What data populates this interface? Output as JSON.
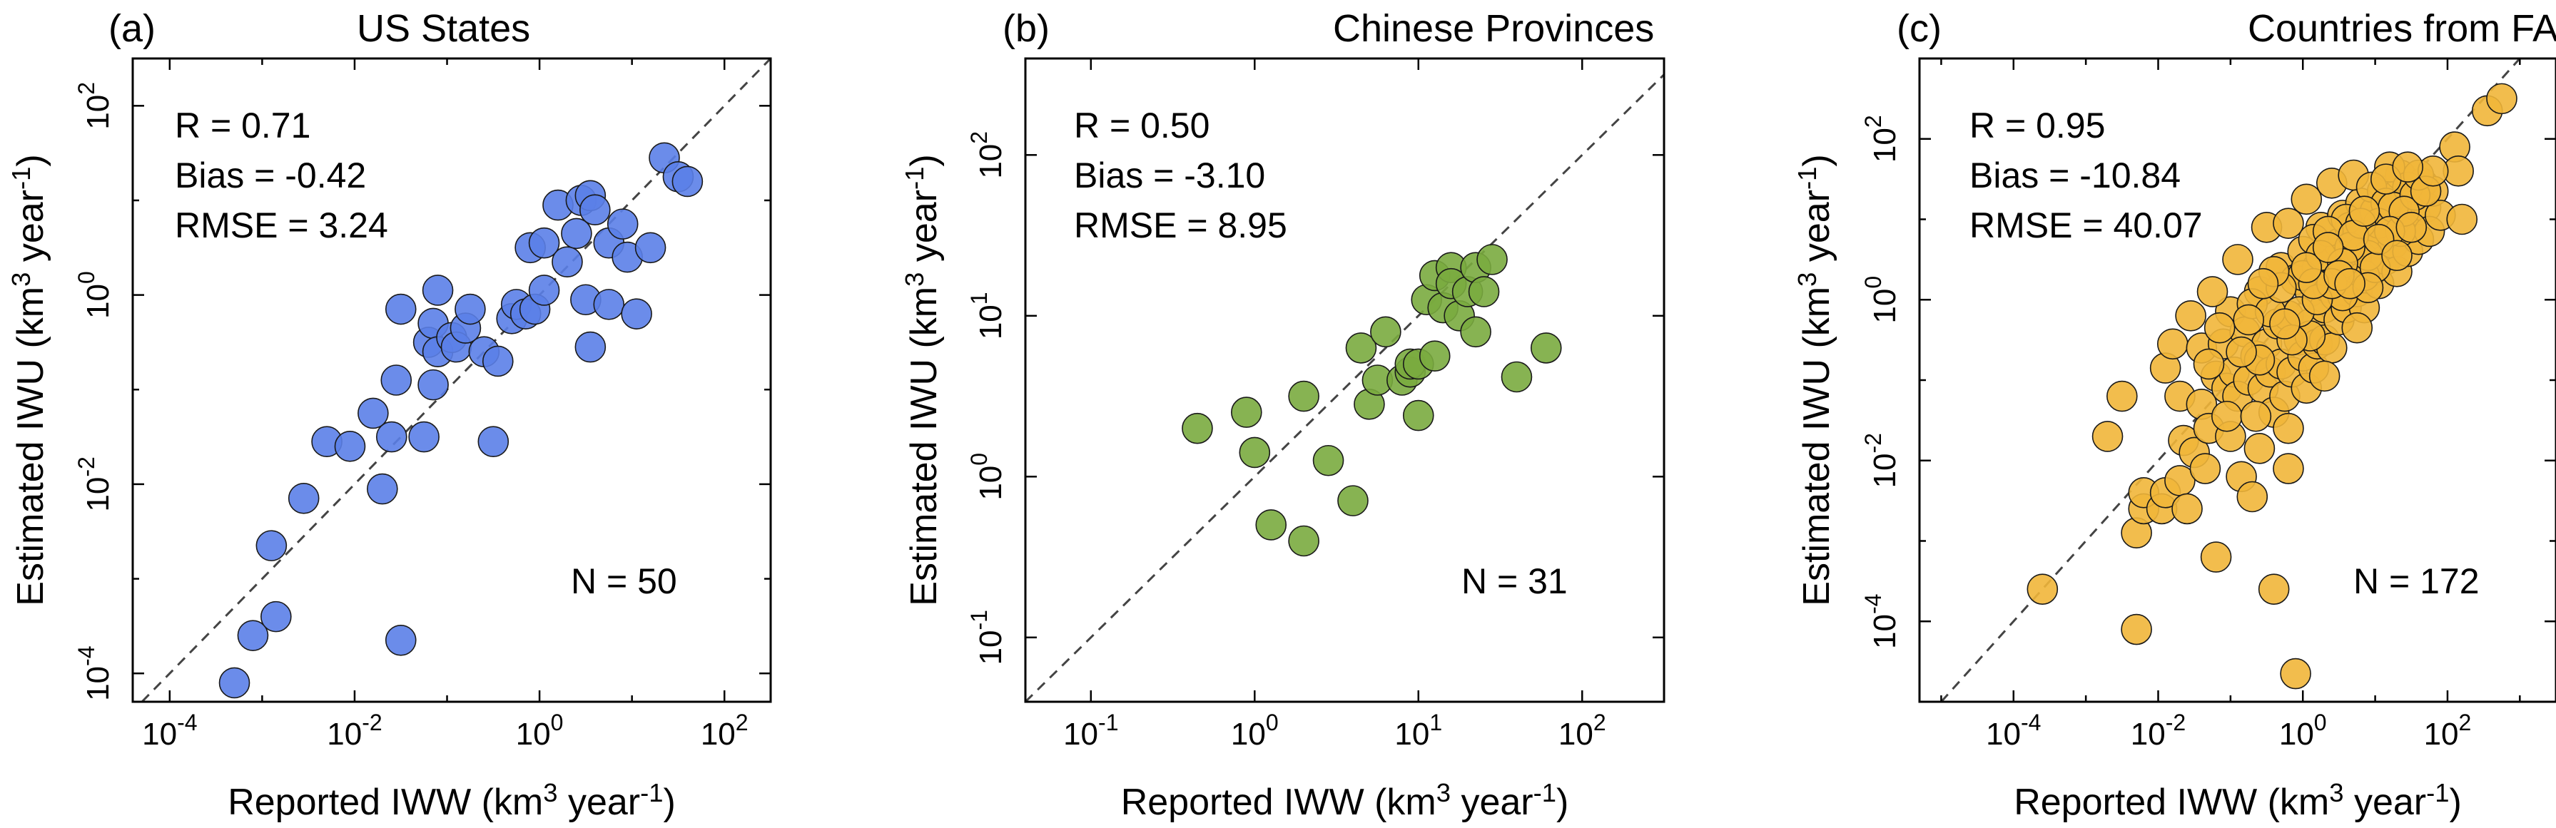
{
  "chart_data": [
    {
      "type": "scatter",
      "panel_label": "(a)",
      "title": "US States",
      "xlabel": "Reported IWW (km",
      "ylabel": "Estimated IWU (km",
      "unit_sup": "3",
      "unit_tail": " year",
      "unit_tail_sup": "-1",
      "unit_close": ")",
      "xlim_log10": [
        -4.4,
        2.5
      ],
      "ylim_log10": [
        -4.3,
        2.5
      ],
      "xticks": [
        -4,
        -2,
        0,
        2
      ],
      "yticks": [
        -4,
        -2,
        0,
        2
      ],
      "reference_line": "1:1",
      "color": "#5b7fe8",
      "stats": [
        "R = 0.71",
        "Bias = -0.42",
        "RMSE = 3.24"
      ],
      "n_label": "N = 50",
      "points_log10": [
        [
          -3.3,
          -4.1
        ],
        [
          -3.1,
          -3.6
        ],
        [
          -2.85,
          -3.4
        ],
        [
          -2.9,
          -2.65
        ],
        [
          -2.55,
          -2.15
        ],
        [
          -2.3,
          -1.55
        ],
        [
          -2.05,
          -1.6
        ],
        [
          -1.8,
          -1.25
        ],
        [
          -1.6,
          -1.5
        ],
        [
          -1.7,
          -2.05
        ],
        [
          -1.5,
          -3.65
        ],
        [
          -1.5,
          -0.15
        ],
        [
          -1.55,
          -0.9
        ],
        [
          -1.25,
          -1.5
        ],
        [
          -1.2,
          -0.5
        ],
        [
          -1.15,
          -0.95
        ],
        [
          -1.15,
          -0.3
        ],
        [
          -1.1,
          0.05
        ],
        [
          -1.1,
          -0.6
        ],
        [
          -0.95,
          -0.45
        ],
        [
          -0.9,
          -0.55
        ],
        [
          -0.8,
          -0.35
        ],
        [
          -0.75,
          -0.15
        ],
        [
          -0.6,
          -0.6
        ],
        [
          -0.45,
          -0.7
        ],
        [
          -0.5,
          -1.55
        ],
        [
          -0.3,
          -0.25
        ],
        [
          -0.25,
          -0.1
        ],
        [
          -0.15,
          -0.2
        ],
        [
          -0.05,
          -0.15
        ],
        [
          0.05,
          0.05
        ],
        [
          -0.1,
          0.5
        ],
        [
          0.05,
          0.55
        ],
        [
          0.2,
          0.95
        ],
        [
          0.3,
          0.35
        ],
        [
          0.4,
          0.65
        ],
        [
          0.45,
          1.0
        ],
        [
          0.55,
          1.05
        ],
        [
          0.6,
          0.9
        ],
        [
          0.75,
          0.55
        ],
        [
          0.5,
          -0.05
        ],
        [
          0.55,
          -0.55
        ],
        [
          0.75,
          -0.1
        ],
        [
          0.9,
          0.75
        ],
        [
          0.95,
          0.4
        ],
        [
          1.05,
          -0.2
        ],
        [
          1.2,
          0.5
        ],
        [
          1.35,
          1.45
        ],
        [
          1.5,
          1.25
        ],
        [
          1.6,
          1.2
        ]
      ]
    },
    {
      "type": "scatter",
      "panel_label": "(b)",
      "title": "Chinese Provinces",
      "xlabel": "Reported IWW (km",
      "ylabel": "Estimated IWU (km",
      "unit_sup": "3",
      "unit_tail": " year",
      "unit_tail_sup": "-1",
      "unit_close": ")",
      "xlim_log10": [
        -1.4,
        2.5
      ],
      "ylim_log10": [
        -1.4,
        2.6
      ],
      "xticks": [
        -1,
        0,
        1,
        2
      ],
      "yticks": [
        -1,
        0,
        1,
        2
      ],
      "reference_line": "1:1",
      "color": "#7aab3f",
      "stats": [
        "R = 0.50",
        "Bias = -3.10",
        "RMSE = 8.95"
      ],
      "n_label": "N = 31",
      "points_log10": [
        [
          -0.35,
          0.3
        ],
        [
          -0.05,
          0.4
        ],
        [
          0.0,
          0.15
        ],
        [
          0.1,
          -0.3
        ],
        [
          0.3,
          -0.4
        ],
        [
          0.3,
          0.5
        ],
        [
          0.45,
          0.1
        ],
        [
          0.6,
          -0.15
        ],
        [
          0.65,
          0.8
        ],
        [
          0.7,
          0.45
        ],
        [
          0.75,
          0.6
        ],
        [
          0.8,
          0.9
        ],
        [
          0.9,
          0.6
        ],
        [
          0.95,
          0.65
        ],
        [
          0.95,
          0.7
        ],
        [
          1.0,
          0.7
        ],
        [
          1.0,
          0.38
        ],
        [
          1.05,
          1.1
        ],
        [
          1.1,
          0.75
        ],
        [
          1.1,
          1.25
        ],
        [
          1.15,
          1.05
        ],
        [
          1.2,
          1.3
        ],
        [
          1.2,
          1.2
        ],
        [
          1.25,
          1.0
        ],
        [
          1.3,
          1.15
        ],
        [
          1.35,
          1.3
        ],
        [
          1.35,
          0.9
        ],
        [
          1.4,
          1.15
        ],
        [
          1.45,
          1.35
        ],
        [
          1.6,
          0.62
        ],
        [
          1.78,
          0.8
        ]
      ]
    },
    {
      "type": "scatter",
      "panel_label": "(c)",
      "title": "Countries from FAOSTAT",
      "xlabel": "Reported IWW (km",
      "ylabel": "Estimated IWU (km",
      "unit_sup": "3",
      "unit_tail": " year",
      "unit_tail_sup": "-1",
      "unit_close": ")",
      "xlim_log10": [
        -5.3,
        3.5
      ],
      "ylim_log10": [
        -5.0,
        3.0
      ],
      "xticks": [
        -4,
        -2,
        0,
        2
      ],
      "yticks": [
        -4,
        -2,
        0,
        2
      ],
      "reference_line": "1:1",
      "color": "#f1b63a",
      "stats": [
        "R = 0.95",
        "Bias = -10.84",
        "RMSE = 40.07"
      ],
      "n_label": "N = 172",
      "points_log10": [
        [
          -3.6,
          -3.6
        ],
        [
          -2.7,
          -1.7
        ],
        [
          -2.5,
          -1.2
        ],
        [
          -2.3,
          -2.9
        ],
        [
          -2.3,
          -4.1
        ],
        [
          -1.9,
          -0.85
        ],
        [
          -2.2,
          -2.6
        ],
        [
          -2.2,
          -2.4
        ],
        [
          -1.95,
          -2.6
        ],
        [
          -1.9,
          -2.4
        ],
        [
          -1.7,
          -2.25
        ],
        [
          -1.8,
          -0.55
        ],
        [
          -1.7,
          -1.2
        ],
        [
          -1.65,
          -1.75
        ],
        [
          -1.6,
          -2.6
        ],
        [
          -1.5,
          -1.9
        ],
        [
          -1.4,
          -0.6
        ],
        [
          -1.4,
          -1.3
        ],
        [
          -1.35,
          -2.1
        ],
        [
          -1.3,
          -1.6
        ],
        [
          -1.2,
          -0.95
        ],
        [
          -1.2,
          -3.2
        ],
        [
          -1.1,
          -0.55
        ],
        [
          -1.05,
          -1.1
        ],
        [
          -1.0,
          -0.15
        ],
        [
          -1.0,
          -1.7
        ],
        [
          -0.95,
          -0.9
        ],
        [
          -0.9,
          -1.2
        ],
        [
          -0.85,
          -2.2
        ],
        [
          -0.8,
          -0.4
        ],
        [
          -0.75,
          -1.0
        ],
        [
          -0.7,
          -2.45
        ],
        [
          -0.65,
          -0.7
        ],
        [
          -0.6,
          0.1
        ],
        [
          -0.6,
          -1.85
        ],
        [
          -0.55,
          -1.1
        ],
        [
          -0.5,
          -0.55
        ],
        [
          -0.45,
          -0.9
        ],
        [
          -0.4,
          -3.6
        ],
        [
          -0.4,
          -1.4
        ],
        [
          -0.35,
          -0.3
        ],
        [
          -0.3,
          0.4
        ],
        [
          -0.3,
          -0.8
        ],
        [
          -0.25,
          -1.2
        ],
        [
          -0.2,
          -2.1
        ],
        [
          -0.2,
          -0.2
        ],
        [
          -0.15,
          -0.9
        ],
        [
          -0.1,
          0.25
        ],
        [
          -0.1,
          -4.65
        ],
        [
          -0.05,
          -0.5
        ],
        [
          0.0,
          -0.7
        ],
        [
          0.0,
          0.6
        ],
        [
          0.05,
          -1.1
        ],
        [
          0.1,
          0.1
        ],
        [
          0.1,
          -0.3
        ],
        [
          0.15,
          -0.85
        ],
        [
          0.2,
          0.4
        ],
        [
          0.2,
          -0.55
        ],
        [
          0.25,
          0.9
        ],
        [
          0.3,
          -0.1
        ],
        [
          0.3,
          -0.5
        ],
        [
          0.35,
          0.15
        ],
        [
          0.4,
          -0.6
        ],
        [
          0.4,
          0.55
        ],
        [
          0.45,
          0.05
        ],
        [
          0.5,
          0.7
        ],
        [
          0.5,
          -0.25
        ],
        [
          0.55,
          1.05
        ],
        [
          0.6,
          0.3
        ],
        [
          0.6,
          -0.1
        ],
        [
          0.65,
          0.9
        ],
        [
          0.7,
          0.45
        ],
        [
          0.75,
          0.1
        ],
        [
          0.8,
          1.2
        ],
        [
          0.8,
          0.6
        ],
        [
          0.85,
          -0.1
        ],
        [
          0.9,
          0.9
        ],
        [
          0.95,
          0.35
        ],
        [
          1.0,
          1.1
        ],
        [
          1.0,
          0.65
        ],
        [
          1.05,
          0.2
        ],
        [
          1.1,
          1.35
        ],
        [
          1.1,
          0.8
        ],
        [
          1.15,
          0.5
        ],
        [
          1.2,
          1.05
        ],
        [
          1.25,
          0.7
        ],
        [
          1.3,
          1.3
        ],
        [
          1.3,
          0.35
        ],
        [
          1.35,
          1.55
        ],
        [
          1.4,
          0.95
        ],
        [
          1.45,
          0.6
        ],
        [
          1.5,
          1.25
        ],
        [
          1.55,
          1.05
        ],
        [
          1.6,
          0.75
        ],
        [
          1.65,
          1.45
        ],
        [
          1.7,
          1.15
        ],
        [
          1.75,
          0.85
        ],
        [
          1.8,
          1.35
        ],
        [
          1.9,
          1.05
        ],
        [
          2.1,
          1.9
        ],
        [
          2.15,
          1.6
        ],
        [
          2.2,
          1.0
        ],
        [
          2.55,
          2.35
        ],
        [
          2.75,
          2.5
        ],
        [
          -0.9,
          0.5
        ],
        [
          -0.5,
          0.9
        ],
        [
          0.05,
          1.25
        ],
        [
          0.4,
          1.45
        ],
        [
          -1.25,
          0.1
        ],
        [
          -1.55,
          -0.2
        ],
        [
          0.7,
          1.55
        ],
        [
          -0.2,
          0.95
        ],
        [
          1.2,
          1.65
        ],
        [
          0.15,
          0.75
        ],
        [
          -0.7,
          -0.05
        ],
        [
          0.95,
          1.4
        ],
        [
          1.15,
          1.2
        ],
        [
          1.45,
          1.4
        ],
        [
          0.6,
          1.0
        ],
        [
          -0.45,
          -0.15
        ],
        [
          -0.2,
          -1.6
        ],
        [
          0.3,
          -0.95
        ],
        [
          0.75,
          -0.35
        ],
        [
          -1.05,
          -1.45
        ],
        [
          -0.6,
          -0.75
        ],
        [
          0.0,
          0.3
        ],
        [
          0.35,
          0.85
        ],
        [
          0.85,
          0.3
        ],
        [
          1.05,
          0.95
        ],
        [
          1.25,
          1.15
        ],
        [
          1.55,
          1.3
        ],
        [
          -0.85,
          -0.65
        ],
        [
          -0.3,
          0.15
        ],
        [
          0.55,
          0.05
        ],
        [
          0.9,
          0.55
        ],
        [
          1.35,
          0.85
        ],
        [
          -1.15,
          -0.35
        ],
        [
          -0.4,
          0.35
        ],
        [
          0.1,
          -0.45
        ],
        [
          0.45,
          0.35
        ],
        [
          0.65,
          0.65
        ],
        [
          0.25,
          0.55
        ],
        [
          -0.05,
          -0.15
        ],
        [
          0.8,
          0.95
        ],
        [
          1.0,
          0.4
        ],
        [
          1.4,
          1.1
        ],
        [
          -0.65,
          -1.45
        ],
        [
          -0.15,
          -0.5
        ],
        [
          0.2,
          0.0
        ],
        [
          0.55,
          0.45
        ],
        [
          0.9,
          0.15
        ],
        [
          1.2,
          0.85
        ],
        [
          1.6,
          1.55
        ],
        [
          1.7,
          1.35
        ],
        [
          1.8,
          1.6
        ],
        [
          -1.3,
          -0.8
        ],
        [
          -0.75,
          -0.25
        ],
        [
          0.4,
          0.2
        ],
        [
          0.7,
          0.8
        ],
        [
          1.05,
          0.75
        ],
        [
          1.3,
          0.55
        ],
        [
          1.5,
          0.9
        ],
        [
          -0.25,
          -0.3
        ],
        [
          0.15,
          0.2
        ],
        [
          0.5,
          0.3
        ],
        [
          0.85,
          1.1
        ],
        [
          1.15,
          1.5
        ],
        [
          1.45,
          1.65
        ],
        [
          -0.55,
          0.2
        ],
        [
          0.05,
          0.4
        ],
        [
          0.35,
          0.65
        ],
        [
          0.65,
          0.2
        ]
      ]
    }
  ]
}
